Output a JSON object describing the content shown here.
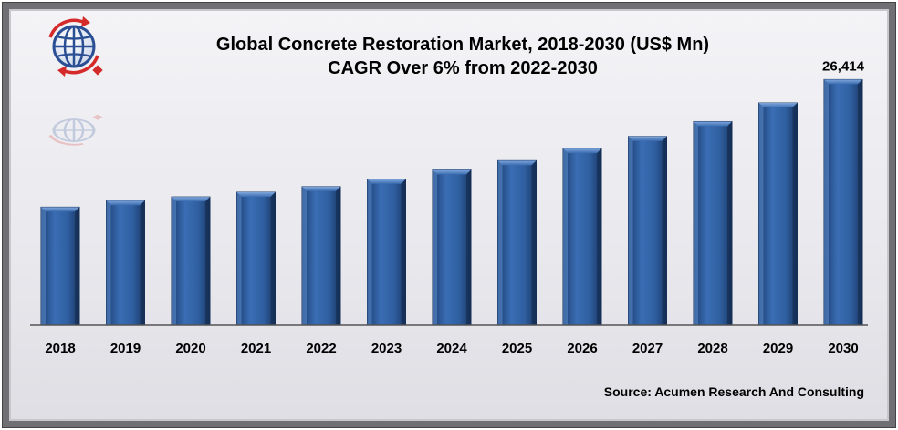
{
  "chart_data": {
    "type": "bar",
    "title": "Global Concrete Restoration Market, 2018-2030 (US$ Mn)",
    "subtitle": "CAGR Over 6% from 2022-2030",
    "categories": [
      "2018",
      "2019",
      "2020",
      "2021",
      "2022",
      "2023",
      "2024",
      "2025",
      "2026",
      "2027",
      "2028",
      "2029",
      "2030"
    ],
    "values": [
      12700,
      13400,
      13800,
      14300,
      14900,
      15700,
      16700,
      17700,
      19000,
      20300,
      21900,
      23900,
      26414
    ],
    "data_labels": [
      "",
      "",
      "",
      "",
      "",
      "",
      "",
      "",
      "",
      "",
      "",
      "",
      "26,414"
    ],
    "ylim": [
      0,
      29000
    ],
    "grid": false,
    "legend": "none",
    "bar_color": "#2d5a9a",
    "source": "Source: Acumen Research And Consulting"
  },
  "logo": {
    "icon": "globe-icon"
  }
}
